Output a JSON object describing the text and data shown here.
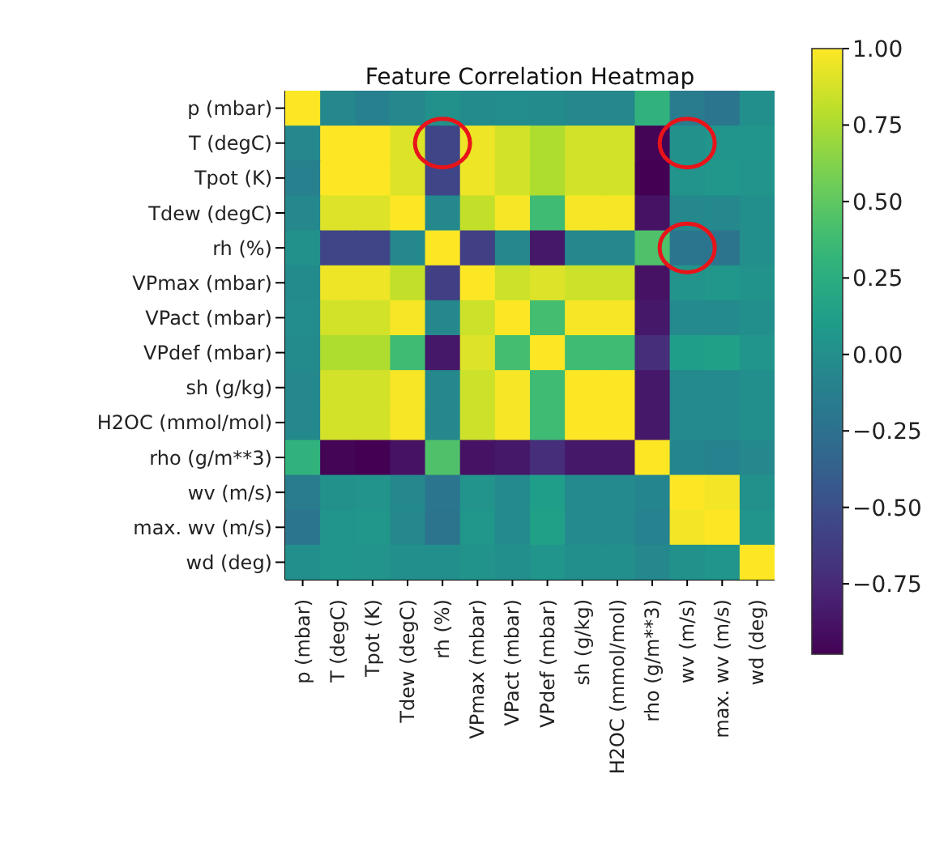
{
  "chart_data": {
    "type": "heatmap",
    "title": "Feature Correlation Heatmap",
    "categories": [
      "p (mbar)",
      "T (degC)",
      "Tpot (K)",
      "Tdew (degC)",
      "rh (%)",
      "VPmax (mbar)",
      "VPact (mbar)",
      "VPdef (mbar)",
      "sh (g/kg)",
      "H2OC (mmol/mol)",
      "rho (g/m**3)",
      "wv (m/s)",
      "max. wv (m/s)",
      "wd (deg)"
    ],
    "y_categories": [
      "p (mbar)",
      "T (degC)",
      "Tpot (K)",
      "Tdew (degC)",
      "rh (%)",
      "VPmax (mbar)",
      "VPact (mbar)",
      "VPdef (mbar)",
      "sh (g/kg)",
      "H2OC (mmol/mol)",
      "rho (g/m**3)",
      "wv (m/s)",
      "max. wv (m/s)",
      "wd (deg)"
    ],
    "cells": [
      [
        1,
        -0.05,
        -0.12,
        -0.05,
        0.02,
        -0.03,
        -0.02,
        -0.03,
        -0.05,
        -0.05,
        0.3,
        -0.15,
        -0.2,
        0
      ],
      [
        -0.05,
        1,
        1,
        0.9,
        -0.57,
        0.95,
        0.87,
        0.76,
        0.87,
        0.87,
        -0.96,
        0.02,
        0.05,
        0.05
      ],
      [
        -0.12,
        1,
        1,
        0.9,
        -0.57,
        0.95,
        0.87,
        0.76,
        0.87,
        0.87,
        -0.98,
        0.04,
        0.06,
        0.04
      ],
      [
        -0.05,
        0.9,
        0.9,
        1,
        -0.05,
        0.82,
        0.98,
        0.38,
        0.98,
        0.98,
        -0.88,
        -0.05,
        -0.05,
        0
      ],
      [
        0.02,
        -0.57,
        -0.57,
        -0.05,
        1,
        -0.6,
        -0.05,
        -0.85,
        -0.05,
        -0.05,
        0.44,
        -0.2,
        -0.22,
        0
      ],
      [
        -0.03,
        0.95,
        0.95,
        0.82,
        -0.6,
        1,
        0.85,
        0.9,
        0.85,
        0.85,
        -0.88,
        0.04,
        0.06,
        0.03
      ],
      [
        -0.02,
        0.87,
        0.87,
        0.98,
        -0.05,
        0.85,
        1,
        0.4,
        0.98,
        0.98,
        -0.85,
        -0.04,
        -0.04,
        0
      ],
      [
        -0.03,
        0.76,
        0.76,
        0.38,
        -0.85,
        0.9,
        0.4,
        1,
        0.38,
        0.38,
        -0.72,
        0.12,
        0.14,
        0.05
      ],
      [
        -0.05,
        0.87,
        0.87,
        0.98,
        -0.05,
        0.85,
        0.98,
        0.38,
        1,
        1,
        -0.85,
        -0.04,
        -0.04,
        0
      ],
      [
        -0.05,
        0.87,
        0.87,
        0.98,
        -0.05,
        0.85,
        0.98,
        0.38,
        1,
        1,
        -0.85,
        -0.04,
        -0.04,
        0
      ],
      [
        0.3,
        -0.96,
        -0.98,
        -0.88,
        0.44,
        -0.88,
        -0.85,
        -0.72,
        -0.85,
        -0.85,
        1,
        -0.08,
        -0.1,
        -0.05
      ],
      [
        -0.15,
        0.02,
        0.04,
        -0.05,
        -0.2,
        0.04,
        -0.04,
        0.12,
        -0.04,
        -0.04,
        -0.08,
        1,
        0.97,
        0.02
      ],
      [
        -0.2,
        0.05,
        0.06,
        -0.05,
        -0.22,
        0.06,
        -0.04,
        0.14,
        -0.04,
        -0.04,
        -0.1,
        0.97,
        1,
        0.05
      ],
      [
        0,
        0.05,
        0.04,
        0,
        0,
        0.03,
        0,
        0.05,
        0,
        0,
        -0.05,
        0.02,
        0.05,
        1
      ]
    ],
    "clim": [
      -0.98,
      1
    ],
    "cticks": [
      {
        "value": 1,
        "label": "1.00"
      },
      {
        "value": 0.75,
        "label": "0.75"
      },
      {
        "value": 0.5,
        "label": "0.50"
      },
      {
        "value": 0.25,
        "label": "0.25"
      },
      {
        "value": 0,
        "label": "0.00"
      },
      {
        "value": -0.25,
        "label": "−0.25"
      },
      {
        "value": -0.5,
        "label": "−0.50"
      },
      {
        "value": -0.75,
        "label": "−0.75"
      }
    ]
  }
}
